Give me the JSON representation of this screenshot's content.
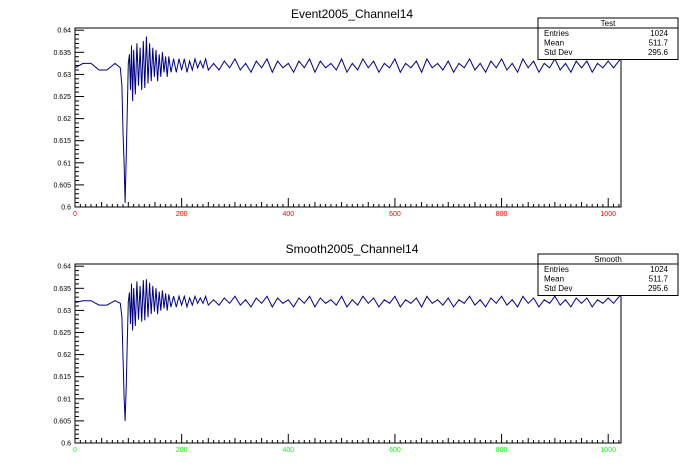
{
  "chart_data": [
    {
      "type": "line",
      "title": "Event2005_Channel14",
      "xlabel": "",
      "ylabel": "",
      "xlim": [
        0,
        1024
      ],
      "ylim": [
        0.6,
        0.6405
      ],
      "x_ticks": [
        "0",
        "200",
        "400",
        "600",
        "800",
        "1000"
      ],
      "x_tick_color": "#ff0000",
      "y_ticks": [
        "0.6",
        "0.605",
        "0.61",
        "0.615",
        "0.62",
        "0.625",
        "0.63",
        "0.635",
        "0.64"
      ],
      "line_color": "#000080",
      "grid": false,
      "legend": "none",
      "stats_box": {
        "title": "Test",
        "rows": [
          {
            "label": "Entries",
            "value": "1024"
          },
          {
            "label": "Mean",
            "value": "511.7"
          },
          {
            "label": "Std Dev",
            "value": "295.6"
          }
        ]
      },
      "series": [
        {
          "x": [
            0,
            15,
            30,
            45,
            60,
            75,
            85,
            88,
            90,
            92,
            94,
            96,
            98,
            100,
            102,
            104,
            106,
            108,
            110,
            113,
            116,
            119,
            122,
            125,
            128,
            131,
            134,
            137,
            140,
            143,
            146,
            149,
            152,
            155,
            158,
            161,
            164,
            167,
            170,
            173,
            176,
            180,
            185,
            190,
            195,
            200,
            205,
            210,
            215,
            220,
            225,
            230,
            235,
            240,
            245,
            250,
            260,
            270,
            280,
            290,
            300,
            310,
            320,
            330,
            340,
            350,
            360,
            370,
            380,
            390,
            400,
            410,
            420,
            430,
            440,
            450,
            460,
            470,
            480,
            490,
            500,
            510,
            520,
            530,
            540,
            550,
            560,
            570,
            580,
            590,
            600,
            610,
            620,
            630,
            640,
            650,
            660,
            670,
            680,
            690,
            700,
            710,
            720,
            730,
            740,
            750,
            760,
            770,
            780,
            790,
            800,
            810,
            820,
            830,
            840,
            850,
            860,
            870,
            880,
            890,
            900,
            910,
            920,
            930,
            940,
            950,
            960,
            970,
            980,
            990,
            1000,
            1010,
            1023
          ],
          "y": [
            0.6315,
            0.6325,
            0.6325,
            0.631,
            0.631,
            0.6325,
            0.6315,
            0.6275,
            0.617,
            0.61,
            0.601,
            0.611,
            0.622,
            0.6325,
            0.6345,
            0.6265,
            0.6365,
            0.624,
            0.6355,
            0.6255,
            0.637,
            0.6275,
            0.636,
            0.6265,
            0.6375,
            0.627,
            0.6385,
            0.628,
            0.637,
            0.6285,
            0.636,
            0.6295,
            0.6355,
            0.6285,
            0.6345,
            0.6295,
            0.635,
            0.6305,
            0.634,
            0.6295,
            0.634,
            0.6305,
            0.6335,
            0.6305,
            0.6335,
            0.631,
            0.6335,
            0.6305,
            0.633,
            0.631,
            0.6335,
            0.6315,
            0.633,
            0.6315,
            0.6335,
            0.631,
            0.6325,
            0.631,
            0.633,
            0.6315,
            0.6335,
            0.631,
            0.6325,
            0.6305,
            0.633,
            0.6315,
            0.6335,
            0.6305,
            0.633,
            0.6315,
            0.6325,
            0.6305,
            0.633,
            0.6315,
            0.6335,
            0.6305,
            0.633,
            0.6315,
            0.6325,
            0.631,
            0.6335,
            0.6305,
            0.6325,
            0.631,
            0.6335,
            0.6315,
            0.633,
            0.6305,
            0.6325,
            0.6315,
            0.6335,
            0.6305,
            0.6325,
            0.6315,
            0.633,
            0.6305,
            0.6335,
            0.6315,
            0.6325,
            0.631,
            0.633,
            0.6305,
            0.6325,
            0.6315,
            0.6335,
            0.631,
            0.6325,
            0.6305,
            0.633,
            0.6315,
            0.6335,
            0.631,
            0.6325,
            0.6305,
            0.6335,
            0.6315,
            0.633,
            0.6305,
            0.6325,
            0.6315,
            0.6335,
            0.631,
            0.6325,
            0.6305,
            0.633,
            0.6315,
            0.633,
            0.6305,
            0.6325,
            0.6315,
            0.633,
            0.6315,
            0.6335
          ]
        }
      ]
    },
    {
      "type": "line",
      "title": "Smooth2005_Channel14",
      "xlabel": "",
      "ylabel": "",
      "xlim": [
        0,
        1024
      ],
      "ylim": [
        0.6,
        0.6405
      ],
      "x_ticks": [
        "0",
        "200",
        "400",
        "600",
        "800",
        "1000"
      ],
      "x_tick_color": "#00ff00",
      "y_ticks": [
        "0.6",
        "0.605",
        "0.61",
        "0.615",
        "0.62",
        "0.625",
        "0.63",
        "0.635",
        "0.64"
      ],
      "line_color": "#000080",
      "grid": false,
      "legend": "none",
      "stats_box": {
        "title": "Smooth",
        "rows": [
          {
            "label": "Entries",
            "value": "1024"
          },
          {
            "label": "Mean",
            "value": "511.7"
          },
          {
            "label": "Std Dev",
            "value": "295.6"
          }
        ]
      },
      "series": [
        {
          "x": [
            0,
            15,
            30,
            45,
            60,
            75,
            85,
            88,
            90,
            92,
            94,
            96,
            98,
            100,
            102,
            104,
            106,
            108,
            110,
            113,
            116,
            119,
            122,
            125,
            128,
            131,
            134,
            137,
            140,
            143,
            146,
            149,
            152,
            155,
            158,
            161,
            164,
            167,
            170,
            173,
            176,
            180,
            185,
            190,
            195,
            200,
            205,
            210,
            215,
            220,
            225,
            230,
            235,
            240,
            245,
            250,
            260,
            270,
            280,
            290,
            300,
            310,
            320,
            330,
            340,
            350,
            360,
            370,
            380,
            390,
            400,
            410,
            420,
            430,
            440,
            450,
            460,
            470,
            480,
            490,
            500,
            510,
            520,
            530,
            540,
            550,
            560,
            570,
            580,
            590,
            600,
            610,
            620,
            630,
            640,
            650,
            660,
            670,
            680,
            690,
            700,
            710,
            720,
            730,
            740,
            750,
            760,
            770,
            780,
            790,
            800,
            810,
            820,
            830,
            840,
            850,
            860,
            870,
            880,
            890,
            900,
            910,
            920,
            930,
            940,
            950,
            960,
            970,
            980,
            990,
            1000,
            1010,
            1023
          ],
          "y": [
            0.6318,
            0.6322,
            0.6322,
            0.6312,
            0.6312,
            0.6322,
            0.6316,
            0.6285,
            0.6195,
            0.6105,
            0.605,
            0.6125,
            0.623,
            0.632,
            0.634,
            0.627,
            0.636,
            0.6255,
            0.635,
            0.6265,
            0.6365,
            0.628,
            0.6355,
            0.6275,
            0.6368,
            0.6278,
            0.637,
            0.6285,
            0.6362,
            0.6292,
            0.6355,
            0.6298,
            0.635,
            0.6292,
            0.6342,
            0.63,
            0.6345,
            0.6305,
            0.6338,
            0.63,
            0.6336,
            0.6308,
            0.6332,
            0.6308,
            0.6332,
            0.6312,
            0.6332,
            0.6308,
            0.6328,
            0.6312,
            0.6332,
            0.6316,
            0.6328,
            0.6316,
            0.6332,
            0.6312,
            0.6324,
            0.6312,
            0.6328,
            0.6316,
            0.6332,
            0.6312,
            0.6324,
            0.6308,
            0.6328,
            0.6316,
            0.6332,
            0.6308,
            0.6328,
            0.6316,
            0.6324,
            0.6308,
            0.6328,
            0.6316,
            0.6332,
            0.6308,
            0.6328,
            0.6316,
            0.6324,
            0.6312,
            0.6332,
            0.6308,
            0.6324,
            0.6312,
            0.6332,
            0.6316,
            0.6328,
            0.6308,
            0.6324,
            0.6316,
            0.6332,
            0.6308,
            0.6324,
            0.6316,
            0.6328,
            0.6308,
            0.6332,
            0.6316,
            0.6324,
            0.6312,
            0.6328,
            0.6308,
            0.6324,
            0.6316,
            0.6332,
            0.6312,
            0.6324,
            0.6308,
            0.6328,
            0.6316,
            0.6332,
            0.6312,
            0.6324,
            0.6308,
            0.6332,
            0.6316,
            0.6328,
            0.6308,
            0.6324,
            0.6316,
            0.6332,
            0.6312,
            0.6324,
            0.6308,
            0.6328,
            0.6316,
            0.6328,
            0.6308,
            0.6324,
            0.6316,
            0.6328,
            0.6316,
            0.6335
          ]
        }
      ]
    }
  ]
}
